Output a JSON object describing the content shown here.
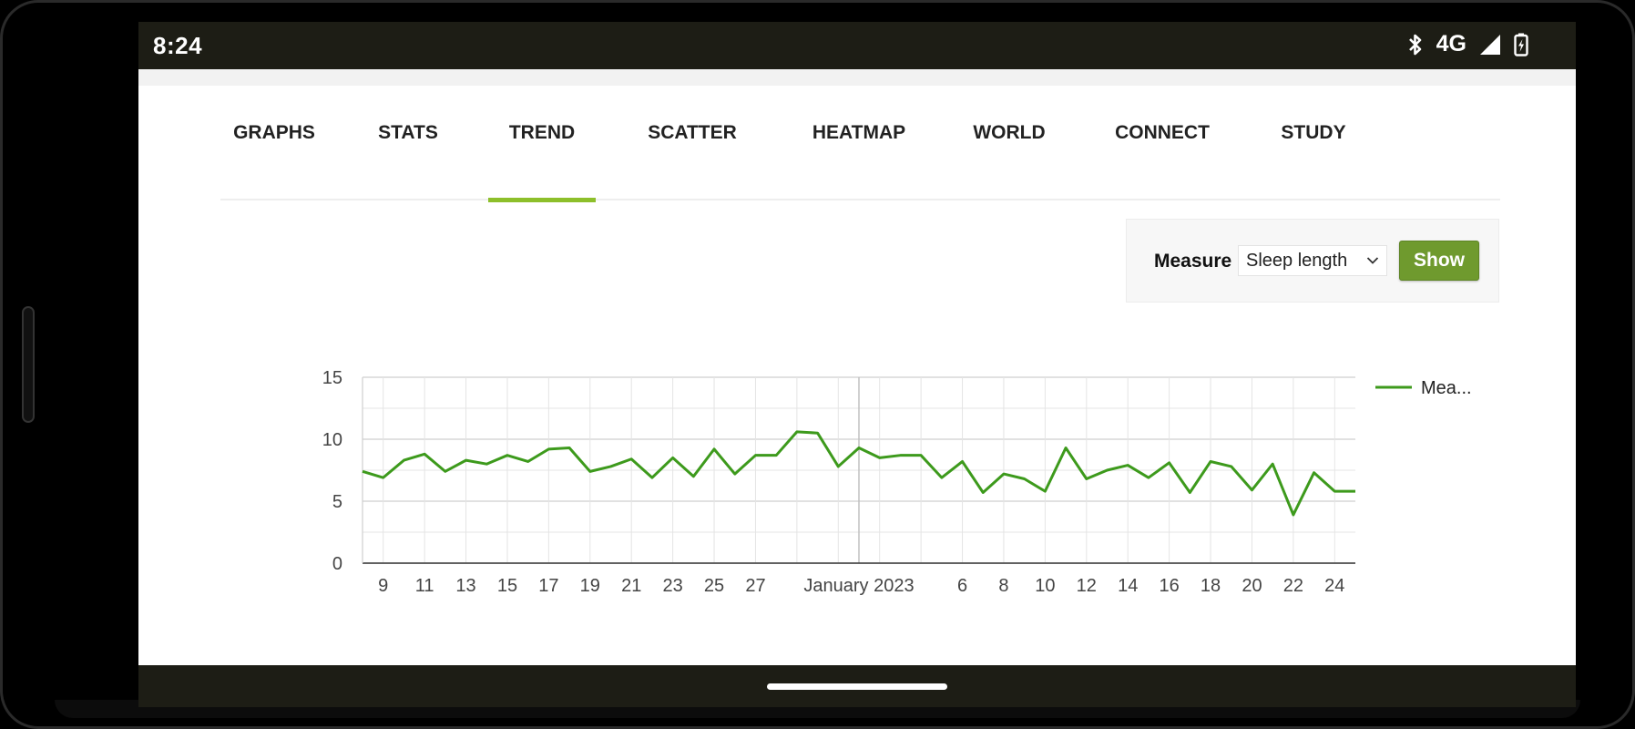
{
  "status": {
    "time": "8:24",
    "network": "4G"
  },
  "tabs": [
    {
      "label": "GRAPHS",
      "active": false
    },
    {
      "label": "STATS",
      "active": false
    },
    {
      "label": "TREND",
      "active": true
    },
    {
      "label": "SCATTER",
      "active": false
    },
    {
      "label": "HEATMAP",
      "active": false
    },
    {
      "label": "WORLD",
      "active": false
    },
    {
      "label": "CONNECT",
      "active": false
    },
    {
      "label": "STUDY",
      "active": false
    }
  ],
  "controls": {
    "measure_label": "Measure",
    "measure_selected": "Sleep length",
    "show_label": "Show"
  },
  "colors": {
    "accent": "#8dbf2a",
    "button": "#6f9a2e",
    "line": "#3d9a1c",
    "bars": "#1d1d15"
  },
  "icons": {
    "bluetooth": "bluetooth-icon",
    "signal": "signal-icon",
    "battery": "battery-charging-icon",
    "dropdown": "chevron-down-icon"
  },
  "chart_data": {
    "type": "line",
    "title": "",
    "xlabel": "",
    "ylabel": "",
    "ylim": [
      0,
      15
    ],
    "yticks": [
      "0",
      "5",
      "10",
      "15"
    ],
    "xticks": [
      "9",
      "11",
      "13",
      "15",
      "17",
      "19",
      "21",
      "23",
      "25",
      "27",
      "January 2023",
      "6",
      "8",
      "10",
      "12",
      "14",
      "16",
      "18",
      "20",
      "22",
      "24"
    ],
    "grid": true,
    "legend_position": "right",
    "x_start_date": "2022-12-08",
    "x_end_date": "2023-01-25",
    "series": [
      {
        "name": "Mea...",
        "x": [
          "2022-12-08",
          "2022-12-09",
          "2022-12-10",
          "2022-12-11",
          "2022-12-12",
          "2022-12-13",
          "2022-12-14",
          "2022-12-15",
          "2022-12-16",
          "2022-12-17",
          "2022-12-18",
          "2022-12-19",
          "2022-12-20",
          "2022-12-21",
          "2022-12-22",
          "2022-12-23",
          "2022-12-24",
          "2022-12-25",
          "2022-12-26",
          "2022-12-27",
          "2022-12-28",
          "2022-12-29",
          "2022-12-30",
          "2022-12-31",
          "2023-01-01",
          "2023-01-02",
          "2023-01-03",
          "2023-01-04",
          "2023-01-05",
          "2023-01-06",
          "2023-01-07",
          "2023-01-08",
          "2023-01-09",
          "2023-01-10",
          "2023-01-11",
          "2023-01-12",
          "2023-01-13",
          "2023-01-14",
          "2023-01-15",
          "2023-01-16",
          "2023-01-17",
          "2023-01-18",
          "2023-01-19",
          "2023-01-20",
          "2023-01-21",
          "2023-01-22",
          "2023-01-23",
          "2023-01-24",
          "2023-01-25"
        ],
        "values": [
          7.4,
          6.9,
          8.3,
          8.8,
          7.4,
          8.3,
          8.0,
          8.7,
          8.2,
          9.2,
          9.3,
          7.4,
          7.8,
          8.4,
          6.9,
          8.5,
          7.0,
          9.2,
          7.2,
          8.7,
          8.7,
          10.6,
          10.5,
          7.8,
          9.3,
          8.5,
          8.7,
          8.7,
          6.9,
          8.2,
          5.7,
          7.2,
          6.8,
          5.8,
          9.3,
          6.8,
          7.5,
          7.9,
          6.9,
          8.1,
          5.7,
          8.2,
          7.8,
          5.9,
          8.0,
          3.9,
          7.3,
          5.8,
          5.8
        ]
      }
    ]
  }
}
